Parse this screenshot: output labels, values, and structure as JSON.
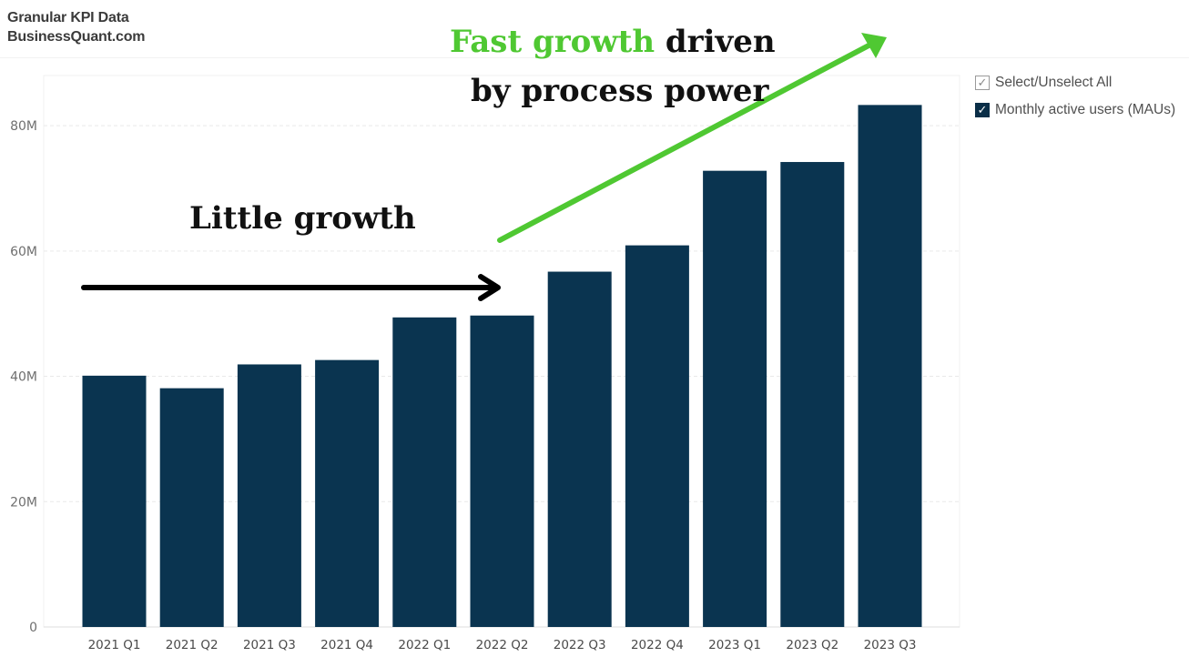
{
  "brand": {
    "line1": "Granular KPI Data",
    "line2": "BusinessQuant.com"
  },
  "legend": {
    "select_all": {
      "label": "Select/Unselect All",
      "check": "✓"
    },
    "series": {
      "label": "Monthly active users (MAUs)",
      "check": "✓"
    }
  },
  "annotations": {
    "little": "Little growth",
    "fast_green": "Fast growth",
    "fast_rest": " driven",
    "fast_line2": "by process power"
  },
  "colors": {
    "bar": "#0a3450",
    "arrow_black": "#000000",
    "arrow_green": "#4fc832"
  },
  "chart_data": {
    "type": "bar",
    "categories": [
      "2021 Q1",
      "2021 Q2",
      "2021 Q3",
      "2021 Q4",
      "2022 Q1",
      "2022 Q2",
      "2022 Q3",
      "2022 Q4",
      "2023 Q1",
      "2023 Q2",
      "2023 Q3"
    ],
    "series": [
      {
        "name": "Monthly active users (MAUs)",
        "values": [
          40.1,
          38.1,
          41.9,
          42.6,
          49.4,
          49.7,
          56.7,
          60.9,
          72.8,
          74.2,
          83.3
        ]
      }
    ],
    "value_unit": "M",
    "ylim": [
      0,
      88
    ],
    "yticks": [
      0,
      20,
      40,
      60,
      80
    ],
    "ytick_labels": [
      "0",
      "20M",
      "40M",
      "60M",
      "80M"
    ],
    "grid": true,
    "legend_position": "right"
  }
}
